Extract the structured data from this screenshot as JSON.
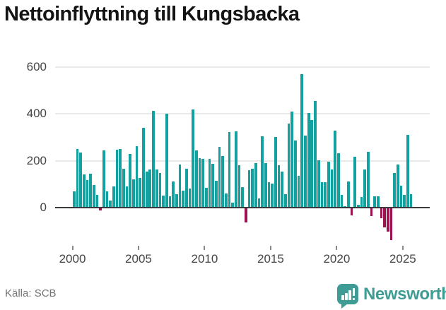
{
  "title": "Nettoinflyttning till Kungsbacka",
  "y_axis": {
    "tick_labels": [
      "600",
      "400",
      "200",
      "0"
    ],
    "tick_values": [
      600,
      400,
      200,
      0
    ]
  },
  "x_axis": {
    "tick_labels": [
      "2000",
      "2005",
      "2010",
      "2015",
      "2020",
      "2025"
    ]
  },
  "footer": {
    "source": "Källa: SCB",
    "brand": "Newsworthy"
  },
  "colors": {
    "positive_bar": "#12a19f",
    "negative_bar": "#9c1350",
    "brand_teal": "#3e9c95",
    "gridline": "#e9e9e9",
    "axis_line": "#3a3a3a",
    "title_text": "#141414",
    "tick_text": "#454545",
    "source_text": "#737373"
  },
  "chart_data": {
    "type": "bar",
    "title": "Nettoinflyttning till Kungsbacka",
    "ylabel": "",
    "xlabel": "",
    "unit": "personer (nettoinflyttning per kvartal)",
    "frequency": "quarterly",
    "start_year": 2000,
    "start_quarter": 1,
    "end_year": 2025,
    "end_quarter": 3,
    "grid": true,
    "legend": false,
    "y_ticks": [
      0,
      200,
      400,
      600
    ],
    "x_tick_years": [
      2000,
      2005,
      2010,
      2015,
      2020,
      2025
    ],
    "ylim": [
      -160,
      630
    ],
    "values": [
      68,
      250,
      234,
      141,
      116,
      145,
      95,
      54,
      -12,
      245,
      68,
      29,
      91,
      248,
      249,
      164,
      90,
      229,
      120,
      263,
      126,
      341,
      152,
      162,
      411,
      161,
      146,
      51,
      401,
      47,
      111,
      57,
      183,
      73,
      164,
      82,
      417,
      244,
      212,
      208,
      83,
      209,
      187,
      114,
      258,
      221,
      60,
      321,
      20,
      326,
      180,
      88,
      -62,
      158,
      164,
      190,
      40,
      303,
      188,
      108,
      102,
      301,
      180,
      152,
      58,
      358,
      410,
      285,
      135,
      568,
      308,
      403,
      373,
      453,
      203,
      108,
      107,
      196,
      161,
      327,
      232,
      55,
      7,
      111,
      -32,
      217,
      12,
      44,
      162,
      239,
      -37,
      47,
      48,
      -45,
      -84,
      -101,
      -137,
      147,
      184,
      93,
      55,
      309,
      57
    ]
  }
}
